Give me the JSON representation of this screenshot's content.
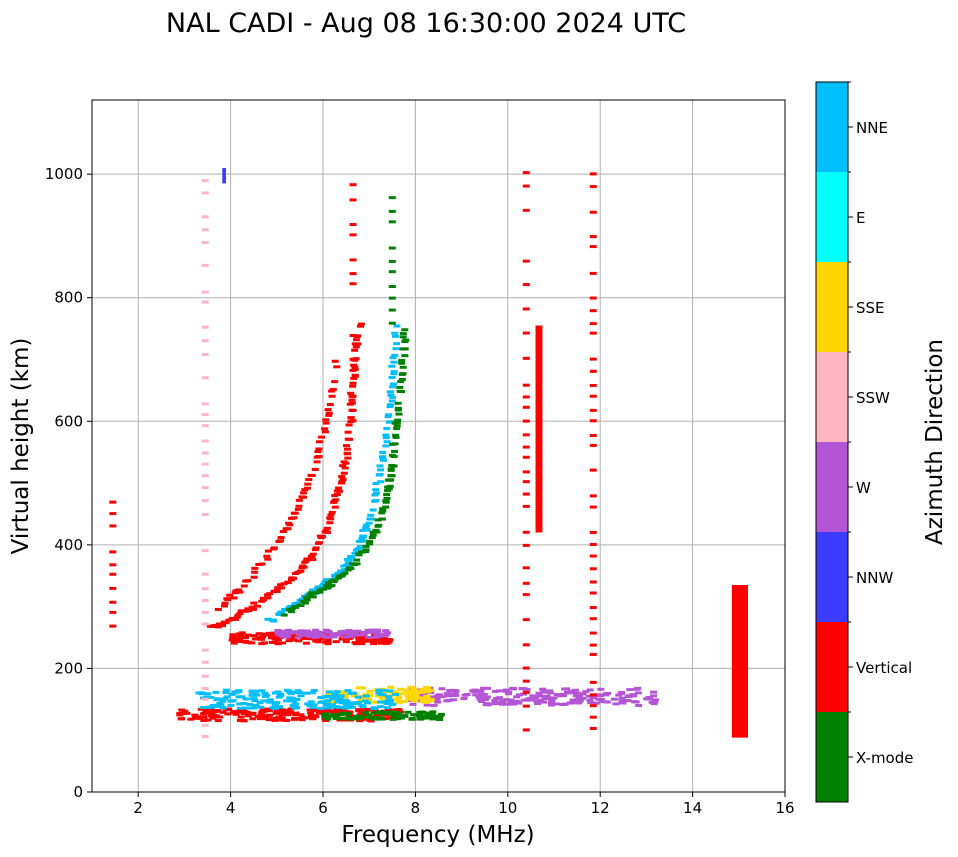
{
  "chart_data": {
    "type": "scatter",
    "title": "NAL CADI - Aug 08 16:30:00 2024 UTC",
    "xlabel": "Frequency (MHz)",
    "ylabel": "Virtual height (km)",
    "xlim": [
      1,
      16
    ],
    "ylim": [
      0,
      1120
    ],
    "xticks": [
      2,
      4,
      6,
      8,
      10,
      12,
      14,
      16
    ],
    "yticks": [
      0,
      200,
      400,
      600,
      800,
      1000
    ],
    "grid": true,
    "colorbar": {
      "label": "Azimuth Direction",
      "categories": [
        {
          "name": "X-mode",
          "color": "#008000"
        },
        {
          "name": "Vertical",
          "color": "#ff0000"
        },
        {
          "name": "NNW",
          "color": "#3c3cff"
        },
        {
          "name": "W",
          "color": "#b455d6"
        },
        {
          "name": "SSW",
          "color": "#ffb6c1"
        },
        {
          "name": "SSE",
          "color": "#ffd700"
        },
        {
          "name": "E",
          "color": "#00ffff"
        },
        {
          "name": "NNE",
          "color": "#00bfff"
        }
      ]
    },
    "traces": [
      {
        "name": "Vertical",
        "kind": "curve",
        "points": [
          [
            3.6,
            265
          ],
          [
            4.0,
            280
          ],
          [
            4.5,
            300
          ],
          [
            5.0,
            325
          ],
          [
            5.4,
            350
          ],
          [
            5.8,
            385
          ],
          [
            6.1,
            430
          ],
          [
            6.3,
            480
          ],
          [
            6.5,
            540
          ],
          [
            6.6,
            620
          ],
          [
            6.7,
            700
          ],
          [
            6.8,
            760
          ]
        ]
      },
      {
        "name": "NNE",
        "kind": "curve",
        "points": [
          [
            4.8,
            275
          ],
          [
            5.3,
            300
          ],
          [
            5.8,
            325
          ],
          [
            6.2,
            345
          ],
          [
            6.5,
            365
          ],
          [
            6.8,
            400
          ],
          [
            7.0,
            440
          ],
          [
            7.2,
            500
          ],
          [
            7.4,
            580
          ],
          [
            7.5,
            660
          ],
          [
            7.6,
            760
          ]
        ]
      },
      {
        "name": "X-mode",
        "kind": "curve",
        "points": [
          [
            5.2,
            290
          ],
          [
            5.7,
            315
          ],
          [
            6.1,
            335
          ],
          [
            6.5,
            355
          ],
          [
            6.9,
            390
          ],
          [
            7.2,
            430
          ],
          [
            7.4,
            480
          ],
          [
            7.5,
            530
          ],
          [
            7.6,
            600
          ],
          [
            7.7,
            680
          ],
          [
            7.8,
            760
          ]
        ]
      },
      {
        "name": "Vertical",
        "kind": "curve",
        "points": [
          [
            3.7,
            295
          ],
          [
            4.3,
            335
          ],
          [
            4.9,
            390
          ],
          [
            5.4,
            450
          ],
          [
            5.8,
            520
          ],
          [
            6.1,
            610
          ],
          [
            6.3,
            700
          ]
        ]
      },
      {
        "name": "Vertical",
        "kind": "hband",
        "x0": 2.9,
        "x1": 7.7,
        "y0": 115,
        "y1": 135
      },
      {
        "name": "X-mode",
        "kind": "hband",
        "x0": 6.0,
        "x1": 8.6,
        "y0": 117,
        "y1": 130
      },
      {
        "name": "W",
        "kind": "hband",
        "x0": 7.9,
        "x1": 13.2,
        "y0": 140,
        "y1": 168
      },
      {
        "name": "SSE",
        "kind": "hband",
        "x0": 6.0,
        "x1": 8.4,
        "y0": 145,
        "y1": 170
      },
      {
        "name": "NNE",
        "kind": "hband",
        "x0": 3.3,
        "x1": 7.6,
        "y0": 135,
        "y1": 165
      },
      {
        "name": "Vertical",
        "kind": "hband",
        "x0": 4.0,
        "x1": 7.5,
        "y0": 240,
        "y1": 258
      },
      {
        "name": "W",
        "kind": "hband",
        "x0": 5.0,
        "x1": 7.4,
        "y0": 250,
        "y1": 262
      },
      {
        "name": "Vertical",
        "kind": "vcol",
        "x": 10.4,
        "y0": 100,
        "y1": 1005
      },
      {
        "name": "Vertical",
        "kind": "vcol",
        "x": 11.85,
        "y0": 100,
        "y1": 1000
      },
      {
        "name": "Vertical",
        "kind": "vcol",
        "x": 6.65,
        "y0": 600,
        "y1": 1000
      },
      {
        "name": "SSW",
        "kind": "vcol",
        "x": 3.45,
        "y0": 90,
        "y1": 990
      },
      {
        "name": "Vertical",
        "kind": "vcol",
        "x": 1.45,
        "y0": 270,
        "y1": 480
      },
      {
        "name": "X-mode",
        "kind": "vcol",
        "x": 7.5,
        "y0": 760,
        "y1": 960
      },
      {
        "name": "Vertical",
        "kind": "block",
        "x0": 10.6,
        "x1": 10.75,
        "y0": 420,
        "y1": 755
      },
      {
        "name": "Vertical",
        "kind": "block",
        "x0": 14.85,
        "x1": 15.2,
        "y0": 88,
        "y1": 335
      },
      {
        "name": "NNW",
        "kind": "block",
        "x0": 3.82,
        "x1": 3.9,
        "y0": 985,
        "y1": 1010
      }
    ]
  }
}
